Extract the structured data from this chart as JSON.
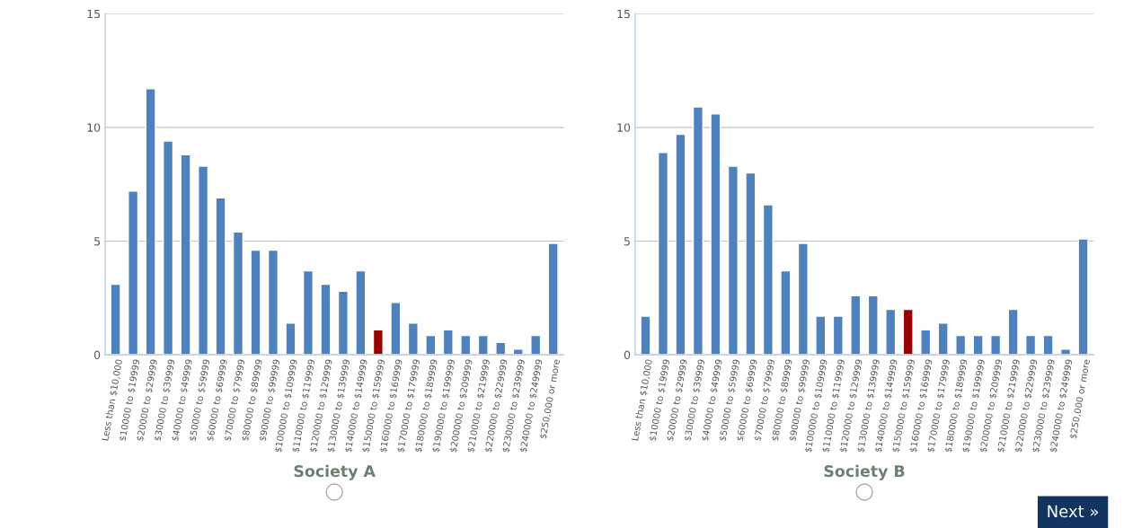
{
  "chart_data": [
    {
      "type": "bar",
      "title": "Society A",
      "categories": [
        "Less than $10,000",
        "$10000 to $19999",
        "$20000 to $29999",
        "$30000 to $39999",
        "$40000 to $49999",
        "$50000 to $59999",
        "$60000 to $69999",
        "$70000 to $79999",
        "$80000 to $89999",
        "$90000 to $99999",
        "$100000 to $109999",
        "$110000 to $119999",
        "$120000 to $129999",
        "$130000 to $139999",
        "$140000 to $149999",
        "$150000 to $159999",
        "$160000 to $169999",
        "$170000 to $179999",
        "$180000 to $189999",
        "$190000 to $199999",
        "$200000 to $209999",
        "$210000 to $219999",
        "$220000 to $229999",
        "$230000 to $239999",
        "$240000 to $249999",
        "$250,000 or more"
      ],
      "values": [
        3.1,
        7.2,
        11.7,
        9.4,
        8.8,
        8.3,
        6.9,
        5.4,
        4.6,
        4.6,
        1.4,
        3.7,
        3.1,
        2.8,
        3.7,
        1.1,
        2.3,
        1.4,
        0.85,
        1.1,
        0.85,
        0.85,
        0.55,
        0.25,
        0.85,
        4.9
      ],
      "colors": [
        "#4f81bd",
        "#4f81bd",
        "#4f81bd",
        "#4f81bd",
        "#4f81bd",
        "#4f81bd",
        "#4f81bd",
        "#4f81bd",
        "#4f81bd",
        "#4f81bd",
        "#4f81bd",
        "#4f81bd",
        "#4f81bd",
        "#4f81bd",
        "#4f81bd",
        "#990000",
        "#4f81bd",
        "#4f81bd",
        "#4f81bd",
        "#4f81bd",
        "#4f81bd",
        "#4f81bd",
        "#4f81bd",
        "#4f81bd",
        "#4f81bd",
        "#4f81bd"
      ],
      "ylim": [
        0,
        15
      ],
      "yticks": [
        0,
        5,
        10,
        15
      ],
      "grid": "y",
      "legend": false
    },
    {
      "type": "bar",
      "title": "Society B",
      "categories": [
        "Less than $10,000",
        "$10000 to $19999",
        "$20000 to $29999",
        "$30000 to $39999",
        "$40000 to $49999",
        "$50000 to $59999",
        "$60000 to $69999",
        "$70000 to $79999",
        "$80000 to $89999",
        "$90000 to $99999",
        "$100000 to $109999",
        "$110000 to $119999",
        "$120000 to $129999",
        "$130000 to $139999",
        "$140000 to $149999",
        "$150000 to $159999",
        "$160000 to $169999",
        "$170000 to $179999",
        "$180000 to $189999",
        "$190000 to $199999",
        "$200000 to $209999",
        "$210000 to $219999",
        "$220000 to $229999",
        "$230000 to $239999",
        "$240000 to $249999",
        "$250,000 or more"
      ],
      "values": [
        1.7,
        8.9,
        9.7,
        10.9,
        10.6,
        8.3,
        8.0,
        6.6,
        3.7,
        4.9,
        1.7,
        1.7,
        2.6,
        2.6,
        2.0,
        2.0,
        1.1,
        1.4,
        0.85,
        0.85,
        0.85,
        2.0,
        0.85,
        0.85,
        0.25,
        5.1
      ],
      "colors": [
        "#4f81bd",
        "#4f81bd",
        "#4f81bd",
        "#4f81bd",
        "#4f81bd",
        "#4f81bd",
        "#4f81bd",
        "#4f81bd",
        "#4f81bd",
        "#4f81bd",
        "#4f81bd",
        "#4f81bd",
        "#4f81bd",
        "#4f81bd",
        "#4f81bd",
        "#990000",
        "#4f81bd",
        "#4f81bd",
        "#4f81bd",
        "#4f81bd",
        "#4f81bd",
        "#4f81bd",
        "#4f81bd",
        "#4f81bd",
        "#4f81bd",
        "#4f81bd"
      ],
      "ylim": [
        0,
        15
      ],
      "yticks": [
        0,
        5,
        10,
        15
      ],
      "grid": "y",
      "legend": false,
      "annotations": [
        "Next »"
      ]
    }
  ]
}
